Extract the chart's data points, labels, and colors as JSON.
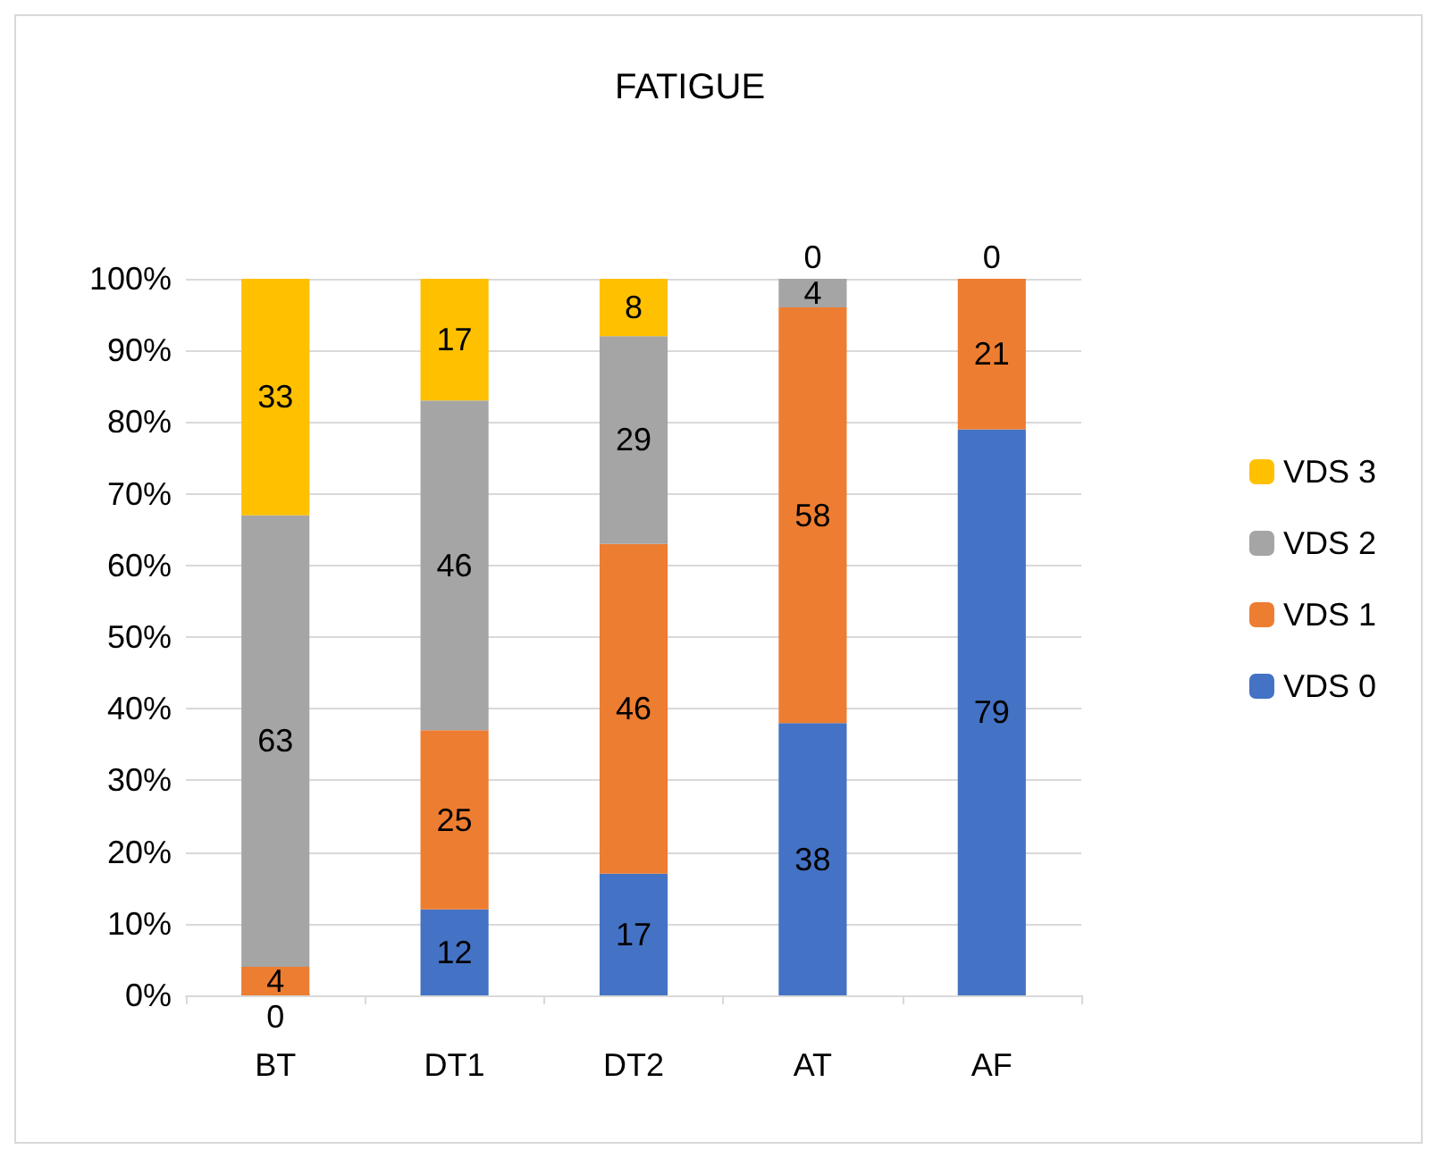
{
  "chart_data": {
    "type": "bar",
    "title": "FATIGUE",
    "stacked": true,
    "categories": [
      "BT",
      "DT1",
      "DT2",
      "AT",
      "AF"
    ],
    "series": [
      {
        "name": "VDS 0",
        "color": "#4472c4",
        "values": [
          0,
          12,
          17,
          38,
          79
        ]
      },
      {
        "name": "VDS 1",
        "color": "#ed7d31",
        "values": [
          4,
          25,
          46,
          58,
          21
        ]
      },
      {
        "name": "VDS 2",
        "color": "#a5a5a5",
        "values": [
          63,
          46,
          29,
          4,
          null
        ]
      },
      {
        "name": "VDS 3",
        "color": "#ffc000",
        "values": [
          33,
          17,
          8,
          0,
          0
        ]
      }
    ],
    "ylim": [
      0,
      100
    ],
    "yticks": [
      {
        "value": 0,
        "label": "0%"
      },
      {
        "value": 10,
        "label": "10%"
      },
      {
        "value": 20,
        "label": "20%"
      },
      {
        "value": 30,
        "label": "30%"
      },
      {
        "value": 40,
        "label": "40%"
      },
      {
        "value": 50,
        "label": "50%"
      },
      {
        "value": 60,
        "label": "60%"
      },
      {
        "value": 70,
        "label": "70%"
      },
      {
        "value": 80,
        "label": "80%"
      },
      {
        "value": 90,
        "label": "90%"
      },
      {
        "value": 100,
        "label": "100%"
      }
    ],
    "grid": "y",
    "legend": "right",
    "data_labels": true
  }
}
